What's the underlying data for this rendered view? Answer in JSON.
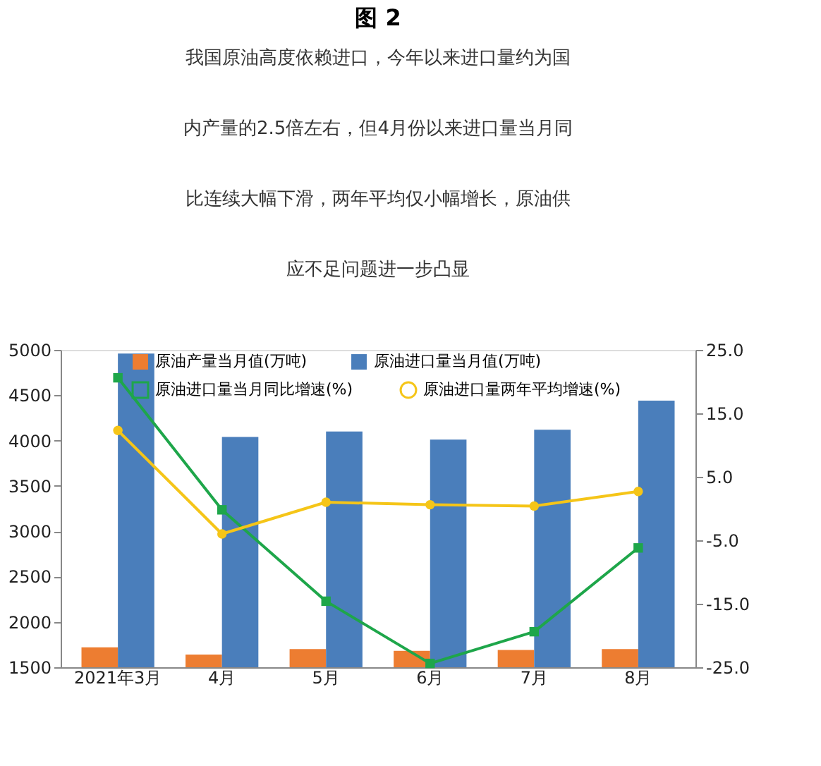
{
  "chart_data": {
    "type": "bar",
    "title": "图 2",
    "subtitle": [
      "我国原油高度依赖进口，今年以来进口量约为国",
      "内产量的2.5倍左右，但4月份以来进口量当月同",
      "比连续大幅下滑，两年平均仅小幅增长，原油供",
      "应不足问题进一步凸显"
    ],
    "categories": [
      "2021年3月",
      "4月",
      "5月",
      "6月",
      "7月",
      "8月"
    ],
    "series": [
      {
        "name": "原油产量当月值(万吨)",
        "color": "#ed7d31",
        "values": [
          1720,
          1640,
          1700,
          1680,
          1690,
          1700
        ]
      },
      {
        "name": "原油进口量当月值(万吨)",
        "color": "#4a7ebb",
        "values": [
          4960,
          4040,
          4100,
          4010,
          4120,
          4440
        ]
      },
      {
        "name": "原油进口量当月同比增速(%)",
        "type": "line",
        "axis": "y2",
        "marker": "square",
        "color": "#1ea64a",
        "values": [
          20.6,
          -0.2,
          -14.6,
          -24.4,
          -19.4,
          -6.2
        ]
      },
      {
        "name": "原油进口量两年平均增速(%)",
        "type": "line",
        "axis": "y2",
        "marker": "circle",
        "color": "#f5c518",
        "values": [
          12.3,
          -4.0,
          1.0,
          0.6,
          0.4,
          2.7
        ]
      }
    ],
    "ylim": [
      1500,
      5000
    ],
    "yticks": [
      1500,
      2000,
      2500,
      3000,
      3500,
      4000,
      4500,
      5000
    ],
    "y2lim": [
      -25,
      25
    ],
    "y2ticks": [
      {
        "value": -25,
        "label": "-25.0"
      },
      {
        "value": -15,
        "label": "-15.0"
      },
      {
        "value": -5,
        "label": "-5.0"
      },
      {
        "value": 5,
        "label": "5.0"
      },
      {
        "value": 15,
        "label": "15.0"
      },
      {
        "value": 25,
        "label": "25.0"
      }
    ],
    "grid": false,
    "legend": "top",
    "line_style": "solid"
  }
}
